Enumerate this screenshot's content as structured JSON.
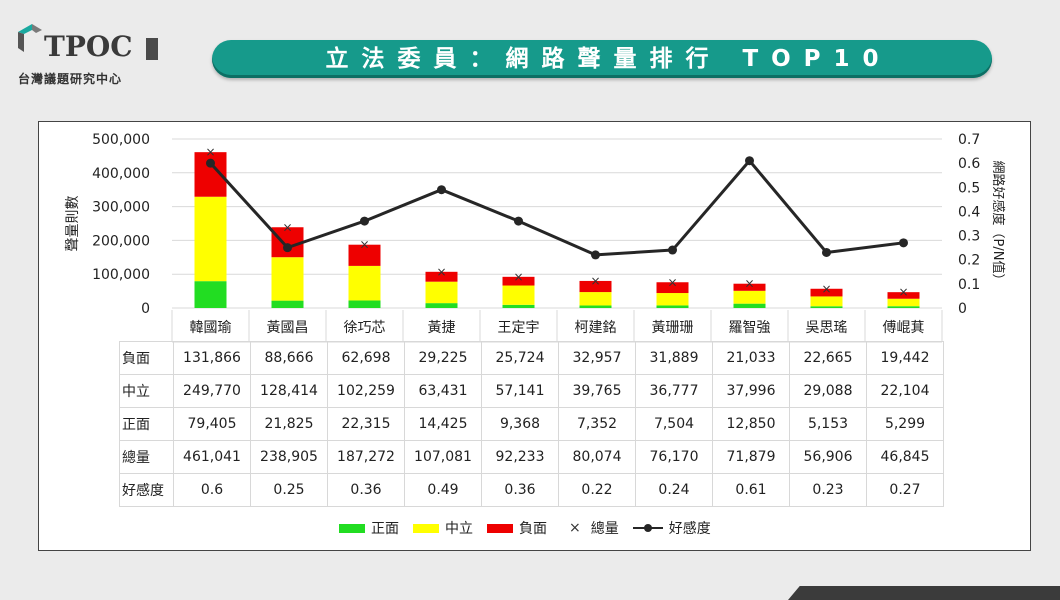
{
  "logo": {
    "text": "TPOC",
    "subtitle": "台灣議題研究中心"
  },
  "banner": {
    "title": "立法委員：網路聲量排行 TOP10"
  },
  "colors": {
    "positive": "#22dd22",
    "neutral": "#ffff00",
    "negative": "#ee0000",
    "line": "#262626",
    "banner": "#169a8b"
  },
  "chart_data": {
    "type": "bar",
    "stacked": true,
    "categories": [
      "韓國瑜",
      "黃國昌",
      "徐巧芯",
      "黃捷",
      "王定宇",
      "柯建銘",
      "黃珊珊",
      "羅智強",
      "吳思瑤",
      "傅崐萁"
    ],
    "series": [
      {
        "name": "正面",
        "values": [
          79405,
          21825,
          22315,
          14425,
          9368,
          7352,
          7504,
          12850,
          5153,
          5299
        ]
      },
      {
        "name": "中立",
        "values": [
          249770,
          128414,
          102259,
          63431,
          57141,
          39765,
          36777,
          37996,
          29088,
          22104
        ]
      },
      {
        "name": "負面",
        "values": [
          131866,
          88666,
          62698,
          29225,
          25724,
          32957,
          31889,
          21033,
          22665,
          19442
        ]
      }
    ],
    "total": {
      "name": "總量",
      "values": [
        461041,
        238905,
        187272,
        107081,
        92233,
        80074,
        76170,
        71879,
        56906,
        46845
      ]
    },
    "line": {
      "name": "好感度",
      "values": [
        0.6,
        0.25,
        0.36,
        0.49,
        0.36,
        0.22,
        0.24,
        0.61,
        0.23,
        0.27
      ]
    },
    "ylabel": "聲量則數",
    "ylabel_right": "網路好感度（P/N值）",
    "ylim": [
      0,
      500000
    ],
    "yticks": [
      "500,000",
      "400,000",
      "300,000",
      "200,000",
      "100,000",
      "0"
    ],
    "ylim_right": [
      0,
      0.7
    ],
    "yticks_right": [
      "0.7",
      "0.6",
      "0.5",
      "0.4",
      "0.3",
      "0.2",
      "0.1",
      "0"
    ],
    "grid": true,
    "legend_position": "bottom"
  },
  "table": {
    "rows": [
      {
        "label": "負面",
        "values": [
          "131,866",
          "88,666",
          "62,698",
          "29,225",
          "25,724",
          "32,957",
          "31,889",
          "21,033",
          "22,665",
          "19,442"
        ]
      },
      {
        "label": "中立",
        "values": [
          "249,770",
          "128,414",
          "102,259",
          "63,431",
          "57,141",
          "39,765",
          "36,777",
          "37,996",
          "29,088",
          "22,104"
        ]
      },
      {
        "label": "正面",
        "values": [
          "79,405",
          "21,825",
          "22,315",
          "14,425",
          "9,368",
          "7,352",
          "7,504",
          "12,850",
          "5,153",
          "5,299"
        ]
      },
      {
        "label": "總量",
        "values": [
          "461,041",
          "238,905",
          "187,272",
          "107,081",
          "92,233",
          "80,074",
          "76,170",
          "71,879",
          "56,906",
          "46,845"
        ]
      },
      {
        "label": "好感度",
        "values": [
          "0.6",
          "0.25",
          "0.36",
          "0.49",
          "0.36",
          "0.22",
          "0.24",
          "0.61",
          "0.23",
          "0.27"
        ]
      }
    ]
  },
  "legend": {
    "positive": "正面",
    "neutral": "中立",
    "negative": "負面",
    "total": "總量",
    "line": "好感度"
  }
}
